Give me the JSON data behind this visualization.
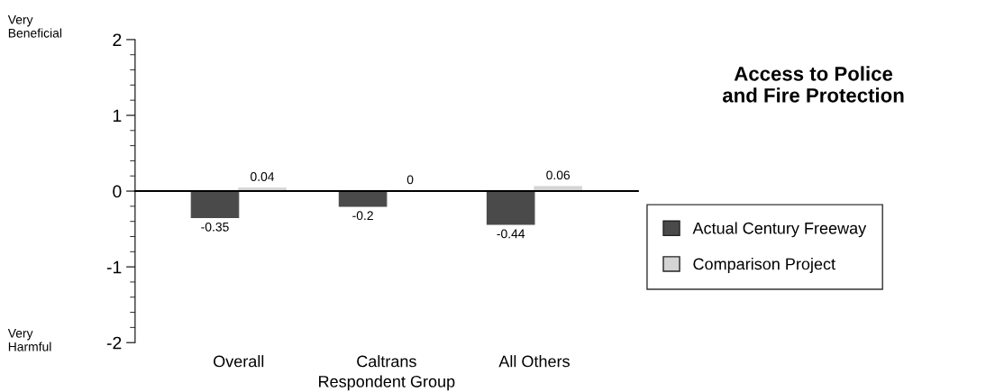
{
  "chart_data": {
    "type": "bar",
    "title": "Access to Police\nand Fire Protection",
    "xlabel": "Respondent Group",
    "categories": [
      "Overall",
      "Caltrans",
      "All Others"
    ],
    "series": [
      {
        "name": "Actual Century Freeway",
        "color": "#4a4a4a",
        "values": [
          -0.35,
          -0.2,
          -0.44
        ]
      },
      {
        "name": "Comparison Project",
        "color": "#d4d4d4",
        "values": [
          0.04,
          0,
          0.06
        ]
      }
    ],
    "ylim": [
      -2,
      2
    ],
    "yticks": [
      -2,
      -1,
      0,
      1,
      2
    ],
    "annotations": [
      "Very\nBeneficial",
      "Very\nHarmful"
    ],
    "data_labels": true,
    "legend": "right"
  }
}
